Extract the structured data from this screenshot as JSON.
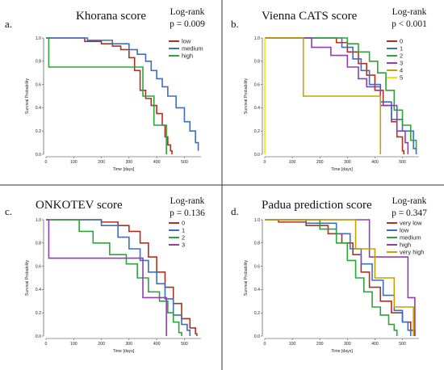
{
  "colors": {
    "red": "#b0301f",
    "blue": "#3a6fc4",
    "green": "#2fa33a",
    "purple": "#8e3fb0",
    "gold": "#c9a100",
    "yellow": "#f2e600"
  },
  "chart_data": [
    {
      "type": "line",
      "panel_label": "a.",
      "title": "Khorana score",
      "logrank_label": "Log-rank",
      "pvalue": "p = 0.009",
      "xlabel": "Time [days]",
      "ylabel": "Survival Probability",
      "xlim": [
        0,
        560
      ],
      "ylim": [
        0,
        1
      ],
      "xticks": [
        "0",
        "100",
        "200",
        "300",
        "400",
        "500"
      ],
      "yticks": [
        "0.0",
        "0.2",
        "0.4",
        "0.6",
        "0.8",
        "1.0"
      ],
      "legend_position": "top-right",
      "series": [
        {
          "name": "low",
          "color": "red",
          "points": [
            [
              0,
              1
            ],
            [
              50,
              1
            ],
            [
              140,
              0.97
            ],
            [
              200,
              0.95
            ],
            [
              240,
              0.93
            ],
            [
              270,
              0.9
            ],
            [
              300,
              0.83
            ],
            [
              320,
              0.72
            ],
            [
              340,
              0.55
            ],
            [
              360,
              0.48
            ],
            [
              380,
              0.42
            ],
            [
              400,
              0.35
            ],
            [
              420,
              0.25
            ],
            [
              430,
              0.15
            ],
            [
              440,
              0.08
            ],
            [
              450,
              0.03
            ],
            [
              455,
              0
            ]
          ]
        },
        {
          "name": "medium",
          "color": "blue",
          "points": [
            [
              0,
              1
            ],
            [
              60,
              1
            ],
            [
              150,
              0.98
            ],
            [
              240,
              0.95
            ],
            [
              300,
              0.9
            ],
            [
              330,
              0.86
            ],
            [
              360,
              0.8
            ],
            [
              380,
              0.72
            ],
            [
              400,
              0.65
            ],
            [
              420,
              0.58
            ],
            [
              440,
              0.5
            ],
            [
              470,
              0.4
            ],
            [
              500,
              0.28
            ],
            [
              520,
              0.2
            ],
            [
              540,
              0.1
            ],
            [
              550,
              0.03
            ]
          ]
        },
        {
          "name": "high",
          "color": "green",
          "points": [
            [
              0,
              1
            ],
            [
              10,
              1
            ],
            [
              10,
              0.75
            ],
            [
              300,
              0.75
            ],
            [
              350,
              0.5
            ],
            [
              390,
              0.25
            ],
            [
              435,
              0.25
            ],
            [
              435,
              0
            ]
          ]
        }
      ]
    },
    {
      "type": "line",
      "panel_label": "b.",
      "title": "Vienna CATS score",
      "logrank_label": "Log-rank",
      "pvalue": "p < 0.001",
      "xlabel": "Time [days]",
      "ylabel": "Survival Probability",
      "xlim": [
        0,
        560
      ],
      "ylim": [
        0,
        1
      ],
      "xticks": [
        "0",
        "100",
        "200",
        "300",
        "400",
        "500"
      ],
      "yticks": [
        "0.0",
        "0.2",
        "0.4",
        "0.6",
        "0.8",
        "1.0"
      ],
      "legend_position": "top-right",
      "series": [
        {
          "name": "0",
          "color": "red",
          "points": [
            [
              0,
              1
            ],
            [
              200,
              1
            ],
            [
              260,
              0.96
            ],
            [
              300,
              0.88
            ],
            [
              340,
              0.78
            ],
            [
              370,
              0.68
            ],
            [
              400,
              0.55
            ],
            [
              430,
              0.42
            ],
            [
              460,
              0.28
            ],
            [
              480,
              0.15
            ],
            [
              500,
              0.03
            ],
            [
              505,
              0
            ]
          ]
        },
        {
          "name": "1",
          "color": "blue",
          "points": [
            [
              0,
              1
            ],
            [
              230,
              1
            ],
            [
              280,
              0.92
            ],
            [
              320,
              0.82
            ],
            [
              350,
              0.72
            ],
            [
              380,
              0.6
            ],
            [
              420,
              0.45
            ],
            [
              460,
              0.3
            ],
            [
              500,
              0.2
            ],
            [
              540,
              0.05
            ],
            [
              550,
              0
            ]
          ]
        },
        {
          "name": "2",
          "color": "green",
          "points": [
            [
              0,
              1
            ],
            [
              250,
              1
            ],
            [
              300,
              0.95
            ],
            [
              340,
              0.88
            ],
            [
              380,
              0.8
            ],
            [
              410,
              0.7
            ],
            [
              440,
              0.55
            ],
            [
              470,
              0.38
            ],
            [
              500,
              0.25
            ],
            [
              530,
              0.12
            ],
            [
              550,
              0.03
            ]
          ]
        },
        {
          "name": "3",
          "color": "purple",
          "points": [
            [
              0,
              1
            ],
            [
              120,
              1
            ],
            [
              170,
              0.92
            ],
            [
              240,
              0.85
            ],
            [
              300,
              0.75
            ],
            [
              340,
              0.65
            ],
            [
              370,
              0.58
            ],
            [
              420,
              0.42
            ],
            [
              480,
              0.2
            ],
            [
              510,
              0.1
            ],
            [
              520,
              0
            ]
          ]
        },
        {
          "name": "4",
          "color": "gold",
          "points": [
            [
              0,
              1
            ],
            [
              140,
              1
            ],
            [
              140,
              0.5
            ],
            [
              420,
              0.5
            ],
            [
              420,
              0
            ]
          ]
        },
        {
          "name": "5",
          "color": "yellow",
          "points": [
            [
              0,
              1
            ],
            [
              0,
              0
            ]
          ]
        }
      ]
    },
    {
      "type": "line",
      "panel_label": "c.",
      "title": "ONKOTEV score",
      "logrank_label": "Log-rank",
      "pvalue": "p = 0.136",
      "xlabel": "Time [days]",
      "ylabel": "Survival Probability",
      "xlim": [
        0,
        560
      ],
      "ylim": [
        0,
        1
      ],
      "xticks": [
        "0",
        "100",
        "200",
        "300",
        "400",
        "500"
      ],
      "yticks": [
        "0.0",
        "0.2",
        "0.4",
        "0.6",
        "0.8",
        "1.0"
      ],
      "legend_position": "top-right",
      "series": [
        {
          "name": "0",
          "color": "red",
          "points": [
            [
              0,
              1
            ],
            [
              100,
              1
            ],
            [
              200,
              0.98
            ],
            [
              260,
              0.95
            ],
            [
              300,
              0.9
            ],
            [
              340,
              0.8
            ],
            [
              370,
              0.68
            ],
            [
              400,
              0.55
            ],
            [
              430,
              0.42
            ],
            [
              460,
              0.28
            ],
            [
              490,
              0.15
            ],
            [
              520,
              0.07
            ],
            [
              540,
              0.02
            ],
            [
              545,
              0
            ]
          ]
        },
        {
          "name": "1",
          "color": "blue",
          "points": [
            [
              0,
              1
            ],
            [
              120,
              1
            ],
            [
              200,
              0.95
            ],
            [
              260,
              0.85
            ],
            [
              300,
              0.75
            ],
            [
              340,
              0.65
            ],
            [
              370,
              0.55
            ],
            [
              400,
              0.45
            ],
            [
              430,
              0.32
            ],
            [
              460,
              0.18
            ],
            [
              490,
              0.1
            ],
            [
              510,
              0.05
            ],
            [
              520,
              0
            ]
          ]
        },
        {
          "name": "2",
          "color": "green",
          "points": [
            [
              0,
              1
            ],
            [
              80,
              1
            ],
            [
              120,
              0.9
            ],
            [
              170,
              0.8
            ],
            [
              230,
              0.7
            ],
            [
              290,
              0.62
            ],
            [
              330,
              0.5
            ],
            [
              370,
              0.38
            ],
            [
              410,
              0.3
            ],
            [
              440,
              0.2
            ],
            [
              460,
              0.12
            ],
            [
              480,
              0.03
            ],
            [
              490,
              0
            ]
          ]
        },
        {
          "name": "3",
          "color": "purple",
          "points": [
            [
              0,
              1
            ],
            [
              10,
              1
            ],
            [
              10,
              0.67
            ],
            [
              280,
              0.67
            ],
            [
              350,
              0.33
            ],
            [
              435,
              0.33
            ],
            [
              435,
              0
            ]
          ]
        }
      ]
    },
    {
      "type": "line",
      "panel_label": "d.",
      "title": "Padua prediction score",
      "logrank_label": "Log-rank",
      "pvalue": "p = 0.347",
      "xlabel": "Time [days]",
      "ylabel": "Survival Probability",
      "xlim": [
        0,
        560
      ],
      "ylim": [
        0,
        1
      ],
      "xticks": [
        "0",
        "100",
        "200",
        "300",
        "400",
        "500"
      ],
      "yticks": [
        "0.0",
        "0.2",
        "0.4",
        "0.6",
        "0.8",
        "1.0"
      ],
      "legend_position": "top-right",
      "series": [
        {
          "name": "very low",
          "color": "red",
          "points": [
            [
              0,
              1
            ],
            [
              50,
              0.98
            ],
            [
              150,
              0.95
            ],
            [
              230,
              0.88
            ],
            [
              280,
              0.8
            ],
            [
              320,
              0.7
            ],
            [
              350,
              0.55
            ],
            [
              380,
              0.42
            ],
            [
              420,
              0.3
            ],
            [
              460,
              0.2
            ],
            [
              500,
              0.12
            ],
            [
              530,
              0.05
            ],
            [
              545,
              0
            ]
          ]
        },
        {
          "name": "low",
          "color": "blue",
          "points": [
            [
              0,
              1
            ],
            [
              150,
              0.97
            ],
            [
              260,
              0.88
            ],
            [
              310,
              0.75
            ],
            [
              350,
              0.62
            ],
            [
              390,
              0.48
            ],
            [
              430,
              0.35
            ],
            [
              470,
              0.22
            ],
            [
              500,
              0.12
            ],
            [
              520,
              0.05
            ],
            [
              530,
              0
            ]
          ]
        },
        {
          "name": "medium",
          "color": "green",
          "points": [
            [
              0,
              1
            ],
            [
              100,
              1
            ],
            [
              200,
              0.92
            ],
            [
              260,
              0.8
            ],
            [
              300,
              0.65
            ],
            [
              330,
              0.5
            ],
            [
              360,
              0.38
            ],
            [
              390,
              0.25
            ],
            [
              420,
              0.18
            ],
            [
              450,
              0.1
            ],
            [
              470,
              0.05
            ],
            [
              480,
              0
            ]
          ]
        },
        {
          "name": "high",
          "color": "purple",
          "points": [
            [
              0,
              1
            ],
            [
              350,
              1
            ],
            [
              380,
              0.68
            ],
            [
              500,
              0.68
            ],
            [
              520,
              0.33
            ],
            [
              545,
              0.33
            ],
            [
              545,
              0
            ]
          ]
        },
        {
          "name": "very high",
          "color": "gold",
          "points": [
            [
              0,
              1
            ],
            [
              300,
              1
            ],
            [
              330,
              0.75
            ],
            [
              400,
              0.5
            ],
            [
              440,
              0.5
            ],
            [
              470,
              0.25
            ],
            [
              540,
              0.25
            ],
            [
              540,
              0
            ]
          ]
        }
      ]
    }
  ]
}
